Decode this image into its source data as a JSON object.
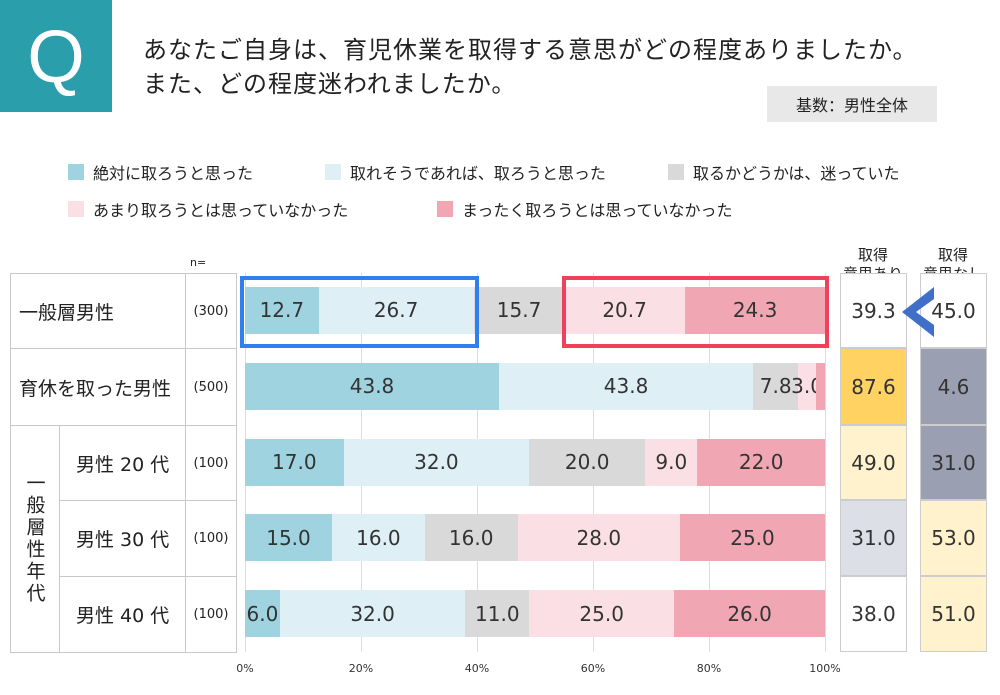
{
  "question": {
    "icon": "Q",
    "line1": "あなたご自身は、育児休業を取得する意思がどの程度ありましたか。",
    "line2": "また、どの程度迷われましたか。"
  },
  "base_label": "基数：男性全体",
  "n_label": "n=",
  "colors": {
    "q_box": "#2a9eab",
    "highlight_blue": "#2f7ff0",
    "highlight_red": "#f0405a",
    "arrow": "#3f6fc8"
  },
  "chart_data": {
    "type": "bar",
    "orientation": "horizontal-stacked-100",
    "legend_placement": "top",
    "series": [
      {
        "name": "絶対に取ろうと思った",
        "color": "#9fd3df"
      },
      {
        "name": "取れそうであれば、取ろうと思った",
        "color": "#def0f5"
      },
      {
        "name": "取るかどうかは、迷っていた",
        "color": "#d9d9d9"
      },
      {
        "name": "あまり取ろうとは思っていなかった",
        "color": "#fadfe4"
      },
      {
        "name": "まったく取ろうとは思っていなかった",
        "color": "#f0a7b3"
      }
    ],
    "rows": [
      {
        "label": "一般層男性",
        "n": "(300)",
        "values": [
          12.7,
          26.7,
          15.7,
          20.7,
          24.3
        ],
        "labels": [
          "12.7",
          "26.7",
          "15.7",
          "20.7",
          "24.3"
        ],
        "intend": "39.3",
        "not_intend": "45.0",
        "intend_color": "#ffffff",
        "not_intend_color": "#ffffff"
      },
      {
        "label": "育休を取った男性",
        "n": "(500)",
        "values": [
          43.8,
          43.8,
          7.8,
          3.0,
          1.6
        ],
        "labels": [
          "43.8",
          "43.8",
          "7.8",
          "3.0",
          ""
        ],
        "intend": "87.6",
        "not_intend": "4.6",
        "intend_color": "#ffd262",
        "not_intend_color": "#9a9fb1"
      },
      {
        "group": "一般層性年代",
        "label": "男性 20 代",
        "n": "(100)",
        "values": [
          17.0,
          32.0,
          20.0,
          9.0,
          22.0
        ],
        "labels": [
          "17.0",
          "32.0",
          "20.0",
          "9.0",
          "22.0"
        ],
        "intend": "49.0",
        "not_intend": "31.0",
        "intend_color": "#fff2cc",
        "not_intend_color": "#9a9fb1"
      },
      {
        "group": "一般層性年代",
        "label": "男性 30 代",
        "n": "(100)",
        "values": [
          15.0,
          16.0,
          16.0,
          28.0,
          25.0
        ],
        "labels": [
          "15.0",
          "16.0",
          "16.0",
          "28.0",
          "25.0"
        ],
        "intend": "31.0",
        "not_intend": "53.0",
        "intend_color": "#dcdfe6",
        "not_intend_color": "#fff2cc"
      },
      {
        "group": "一般層性年代",
        "label": "男性 40 代",
        "n": "(100)",
        "values": [
          6.0,
          32.0,
          11.0,
          25.0,
          26.0
        ],
        "labels": [
          "6.0",
          "32.0",
          "11.0",
          "25.0",
          "26.0"
        ],
        "intend": "38.0",
        "not_intend": "51.0",
        "intend_color": "#ffffff",
        "not_intend_color": "#fff2cc"
      }
    ],
    "group_label": "一般層性年代",
    "xlim": [
      0,
      100
    ],
    "xticks": [
      "0%",
      "20%",
      "40%",
      "60%",
      "80%",
      "100%"
    ],
    "grid": true,
    "summary_headers": {
      "intend": "取得\n意思あり",
      "not_intend": "取得\n意思なし"
    }
  }
}
